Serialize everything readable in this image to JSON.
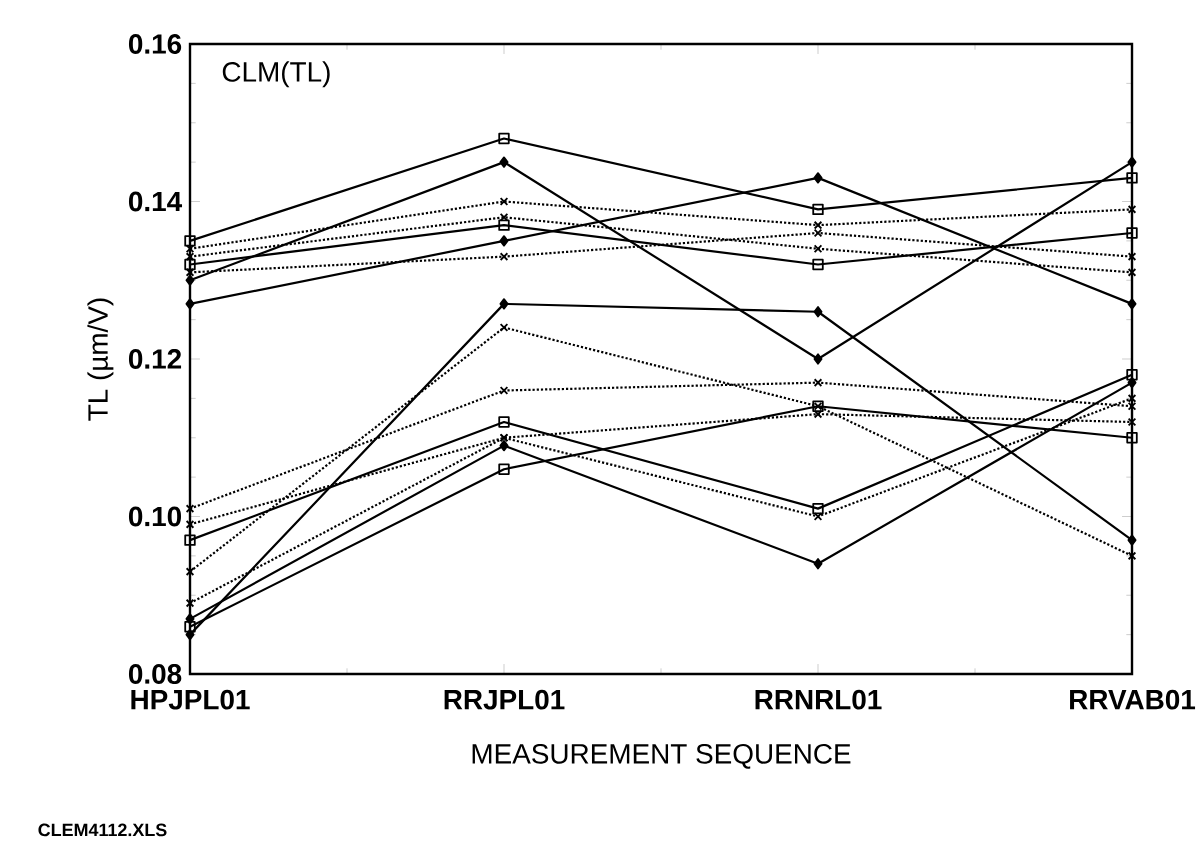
{
  "chart_data": {
    "type": "line",
    "xlabel": "MEASUREMENT SEQUENCE",
    "ylabel": "TL (µm/V)",
    "annotations": [
      "CLM(TL)",
      "CLEM4112.XLS"
    ],
    "categories": [
      "HPJPL01",
      "RRJPL01",
      "RRNRL01",
      "RRVAB01"
    ],
    "ylim": [
      0.08,
      0.16
    ],
    "yticks": [
      0.08,
      {
        "value": 0.1,
        "label": "0.10"
      },
      0.12,
      0.14,
      0.16
    ],
    "series": [
      {
        "color": "#000000",
        "marker": "square",
        "line_style": "solid",
        "values": [
          0.135,
          0.148,
          0.139,
          0.143
        ]
      },
      {
        "color": "#000000",
        "marker": "diamond",
        "line_style": "solid",
        "values": [
          0.13,
          0.145,
          0.12,
          0.145
        ]
      },
      {
        "color": "#000000",
        "marker": "diamond",
        "line_style": "solid",
        "values": [
          0.127,
          0.135,
          0.143,
          0.127
        ]
      },
      {
        "color": "#000000",
        "marker": "cross",
        "line_style": "dotted",
        "values": [
          0.134,
          0.14,
          0.137,
          0.139
        ]
      },
      {
        "color": "#000000",
        "marker": "cross",
        "line_style": "dotted",
        "values": [
          0.133,
          0.138,
          0.134,
          0.131
        ]
      },
      {
        "color": "#000000",
        "marker": "square",
        "line_style": "solid",
        "values": [
          0.132,
          0.137,
          0.132,
          0.136
        ]
      },
      {
        "color": "#000000",
        "marker": "cross",
        "line_style": "dotted",
        "values": [
          0.131,
          0.133,
          0.136,
          0.133
        ]
      },
      {
        "color": "#000000",
        "marker": "diamond",
        "line_style": "solid",
        "values": [
          0.085,
          0.127,
          0.126,
          0.097
        ]
      },
      {
        "color": "#000000",
        "marker": "cross",
        "line_style": "dotted",
        "values": [
          0.093,
          0.124,
          0.114,
          0.095
        ]
      },
      {
        "color": "#000000",
        "marker": "cross",
        "line_style": "dotted",
        "values": [
          0.101,
          0.116,
          0.117,
          0.114
        ]
      },
      {
        "color": "#000000",
        "marker": "square",
        "line_style": "solid",
        "values": [
          0.097,
          0.112,
          0.101,
          0.118
        ]
      },
      {
        "color": "#000000",
        "marker": "cross",
        "line_style": "dotted",
        "values": [
          0.099,
          0.11,
          0.1,
          0.115
        ]
      },
      {
        "color": "#000000",
        "marker": "diamond",
        "line_style": "solid",
        "values": [
          0.087,
          0.109,
          0.094,
          0.117
        ]
      },
      {
        "color": "#000000",
        "marker": "square",
        "line_style": "solid",
        "values": [
          0.086,
          0.106,
          0.114,
          0.11
        ]
      },
      {
        "color": "#000000",
        "marker": "cross",
        "line_style": "dotted",
        "values": [
          0.089,
          0.11,
          0.113,
          0.112
        ]
      }
    ]
  }
}
